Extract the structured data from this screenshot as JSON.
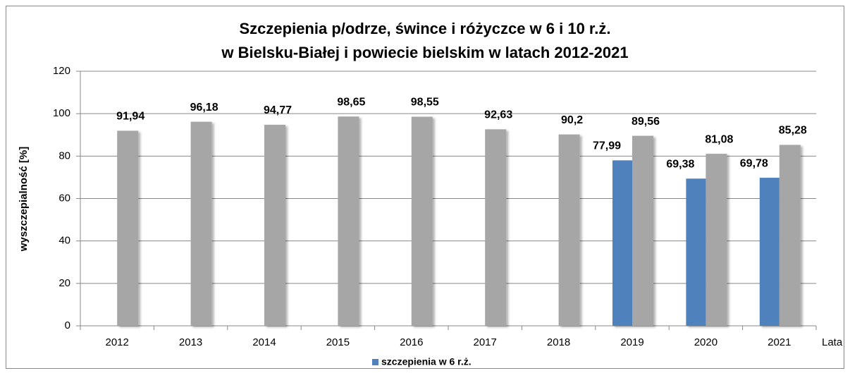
{
  "chart_data": {
    "type": "bar",
    "title": [
      "Szczepienia p/odrze, śwince i różyczce w 6 i 10 r.ż.",
      "w Bielsku-Białej i powiecie bielskim w latach 2012-2021"
    ],
    "y_label": "wyszczepialność [%]",
    "x_label": "Lata",
    "categories": [
      "2012",
      "2013",
      "2014",
      "2015",
      "2016",
      "2017",
      "2018",
      "2019",
      "2020",
      "2021"
    ],
    "series": [
      {
        "name": "szczepienia w 6 r.ż.",
        "color": "#4f81bd",
        "values": [
          null,
          null,
          null,
          null,
          null,
          null,
          null,
          77.99,
          69.38,
          69.78
        ],
        "value_labels": [
          null,
          null,
          null,
          null,
          null,
          null,
          null,
          "77,99",
          "69,38",
          "69,78"
        ]
      },
      {
        "color": "#a6a6a6",
        "values": [
          91.94,
          96.18,
          94.77,
          98.65,
          98.55,
          92.63,
          90.2,
          89.56,
          81.08,
          85.28
        ],
        "value_labels": [
          "91,94",
          "96,18",
          "94,77",
          "98,65",
          "98,55",
          "92,63",
          "90,2",
          "89,56",
          "81,08",
          "85,28"
        ]
      }
    ],
    "ylim": [
      0,
      120
    ],
    "yticks": [
      0,
      20,
      40,
      60,
      80,
      100,
      120
    ],
    "grid": true,
    "legend": "bottom"
  }
}
